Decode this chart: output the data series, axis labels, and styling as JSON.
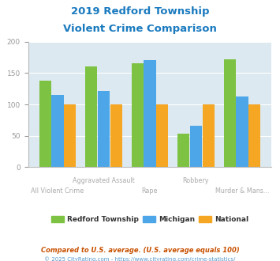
{
  "title_line1": "2019 Redford Township",
  "title_line2": "Violent Crime Comparison",
  "categories": [
    "All Violent Crime",
    "Aggravated Assault",
    "Rape",
    "Robbery",
    "Murder & Mans..."
  ],
  "redford": [
    138,
    161,
    166,
    53,
    172
  ],
  "michigan": [
    115,
    122,
    171,
    66,
    112
  ],
  "national": [
    100,
    100,
    100,
    100,
    100
  ],
  "color_redford": "#7dc242",
  "color_michigan": "#4da6e8",
  "color_national": "#f5a623",
  "ylim": [
    0,
    200
  ],
  "yticks": [
    0,
    50,
    100,
    150,
    200
  ],
  "legend_labels": [
    "Redford Township",
    "Michigan",
    "National"
  ],
  "footnote1": "Compared to U.S. average. (U.S. average equals 100)",
  "footnote2": "© 2025 CityRating.com - https://www.cityrating.com/crime-statistics/",
  "plot_bg": "#dce9f0",
  "title_color": "#1a7abf",
  "footnote1_color": "#c85000",
  "footnote2_color": "#5599cc",
  "xtick_color": "#aaaaaa"
}
